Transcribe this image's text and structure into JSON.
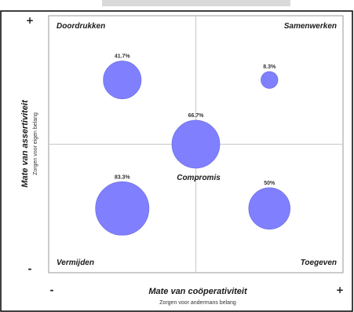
{
  "chart_data": {
    "type": "scatter",
    "title": "",
    "xlabel": "Mate van coöperativiteit",
    "xlabel_sub": "Zorgen voor andermans belang",
    "ylabel": "Mate van assertiviteit",
    "ylabel_sub": "Zorgen voor eigen belang",
    "xlim": [
      0,
      10
    ],
    "ylim": [
      0,
      10
    ],
    "grid": false,
    "axis_ends": {
      "x_min": "-",
      "x_max": "+",
      "y_min": "-",
      "y_max": "+"
    },
    "quadrants": {
      "top_left": "Doordrukken",
      "top_right": "Samenwerken",
      "bottom_left": "Vermijden",
      "bottom_right": "Toegeven"
    },
    "center_label": "Compromis",
    "bubble_color": "#8080ff",
    "bubble_stroke": "#6f6fe6",
    "points": [
      {
        "x": 2.5,
        "y": 7.5,
        "value": 41.7,
        "label": "41.7%"
      },
      {
        "x": 7.5,
        "y": 7.5,
        "value": 8.3,
        "label": "8.3%"
      },
      {
        "x": 5.0,
        "y": 5.0,
        "value": 66.7,
        "label": "66.7%"
      },
      {
        "x": 2.5,
        "y": 2.5,
        "value": 83.3,
        "label": "83.3%"
      },
      {
        "x": 7.5,
        "y": 2.5,
        "value": 50.0,
        "label": "50%"
      }
    ]
  }
}
